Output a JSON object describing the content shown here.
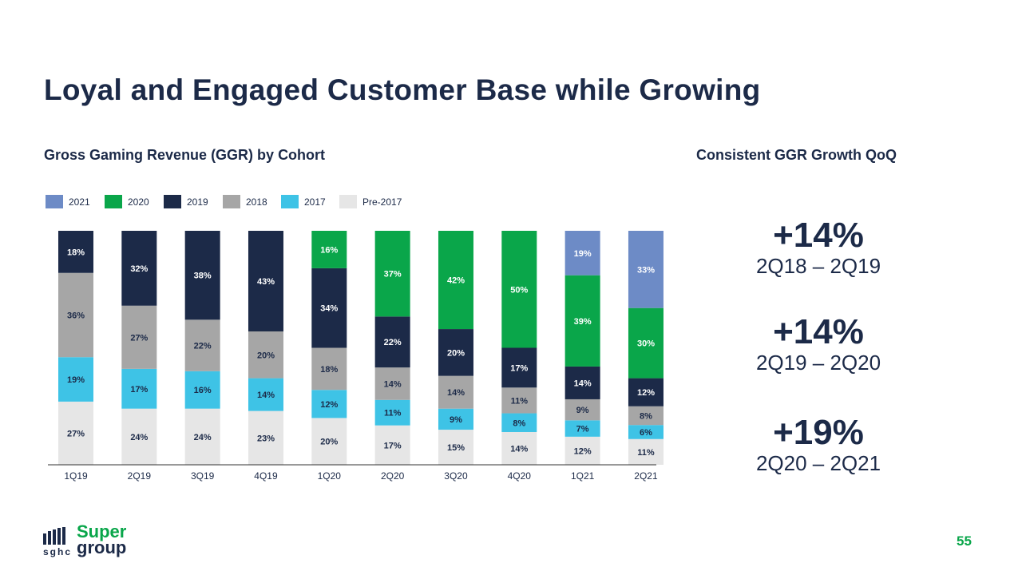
{
  "page": {
    "title": "Loyal and Engaged Customer Base while Growing",
    "right_heading": "Consistent GGR Growth QoQ",
    "page_number": "55"
  },
  "growth": [
    {
      "value": "+14%",
      "period": "2Q18 – 2Q19"
    },
    {
      "value": "+14%",
      "period": "2Q19 – 2Q20"
    },
    {
      "value": "+19%",
      "period": "2Q20 – 2Q21"
    }
  ],
  "logo": {
    "word1": "Super",
    "word2": "group",
    "sub": "sghc"
  },
  "chart_data": {
    "type": "bar",
    "stacked": true,
    "normalized_percent": true,
    "title": "Gross Gaming Revenue (GGR) by Cohort",
    "legend_placement": "top-left",
    "categories": [
      "1Q19",
      "2Q19",
      "3Q19",
      "4Q19",
      "1Q20",
      "2Q20",
      "3Q20",
      "4Q20",
      "1Q21",
      "2Q21"
    ],
    "series": [
      {
        "name": "Pre-2017",
        "color": "#e6e6e6",
        "label_color": "#1c2a48",
        "values": [
          27,
          24,
          24,
          23,
          20,
          17,
          15,
          14,
          12,
          11
        ]
      },
      {
        "name": "2017",
        "color": "#3ec3e6",
        "label_color": "#1c2a48",
        "values": [
          19,
          17,
          16,
          14,
          12,
          11,
          9,
          8,
          7,
          6
        ]
      },
      {
        "name": "2018",
        "color": "#a6a6a6",
        "label_color": "#1c2a48",
        "values": [
          36,
          27,
          22,
          20,
          18,
          14,
          14,
          11,
          9,
          8
        ]
      },
      {
        "name": "2019",
        "color": "#1c2a48",
        "label_color": "#ffffff",
        "values": [
          18,
          32,
          38,
          43,
          34,
          22,
          20,
          17,
          14,
          12
        ]
      },
      {
        "name": "2020",
        "color": "#0aa64a",
        "label_color": "#ffffff",
        "values": [
          0,
          0,
          0,
          0,
          16,
          37,
          42,
          50,
          39,
          30
        ]
      },
      {
        "name": "2021",
        "color": "#6d8bc6",
        "label_color": "#ffffff",
        "values": [
          0,
          0,
          0,
          0,
          0,
          0,
          0,
          0,
          19,
          33
        ]
      }
    ],
    "legend_order": [
      "2021",
      "2020",
      "2019",
      "2018",
      "2017",
      "Pre-2017"
    ],
    "ylim": [
      0,
      100
    ],
    "grid": false
  }
}
